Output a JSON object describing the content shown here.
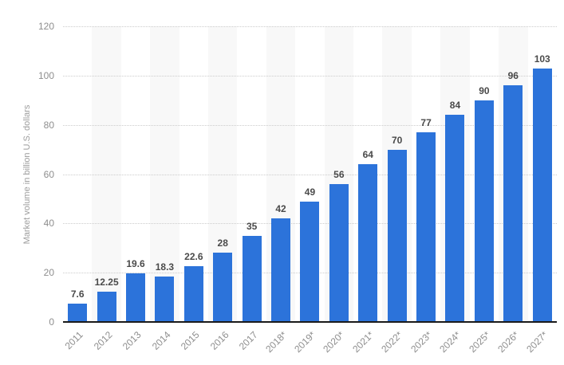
{
  "chart_data": {
    "type": "bar",
    "title": "",
    "xlabel": "",
    "ylabel": "Market volume in billion U.S. dollars",
    "categories": [
      "2011",
      "2012",
      "2013",
      "2014",
      "2015",
      "2016",
      "2017",
      "2018*",
      "2019*",
      "2020*",
      "2021*",
      "2022*",
      "2023*",
      "2024*",
      "2025*",
      "2026*",
      "2027*"
    ],
    "values": [
      7.6,
      12.25,
      19.6,
      18.3,
      22.6,
      28,
      35,
      42,
      49,
      56,
      64,
      70,
      77,
      84,
      90,
      96,
      103
    ],
    "value_labels": [
      "7.6",
      "12.25",
      "19.6",
      "18.3",
      "22.6",
      "28",
      "35",
      "42",
      "49",
      "56",
      "64",
      "70",
      "77",
      "84",
      "90",
      "96",
      "103"
    ],
    "ylim": [
      0,
      120
    ],
    "yticks": [
      0,
      20,
      40,
      60,
      80,
      100,
      120
    ],
    "grid": "horizontal dotted",
    "legend": "none",
    "column_stripes": "every second category column starting at 2012",
    "colors": {
      "bar": "#2c73da",
      "column_stripe": "#f8f8f8",
      "gridline": "#cccccc",
      "axis_line": "#1a1a1a",
      "tick_label": "#8e8e8e",
      "value_label": "#4a4a4a",
      "axis_title": "#9c9c9c",
      "background": "#ffffff"
    }
  }
}
